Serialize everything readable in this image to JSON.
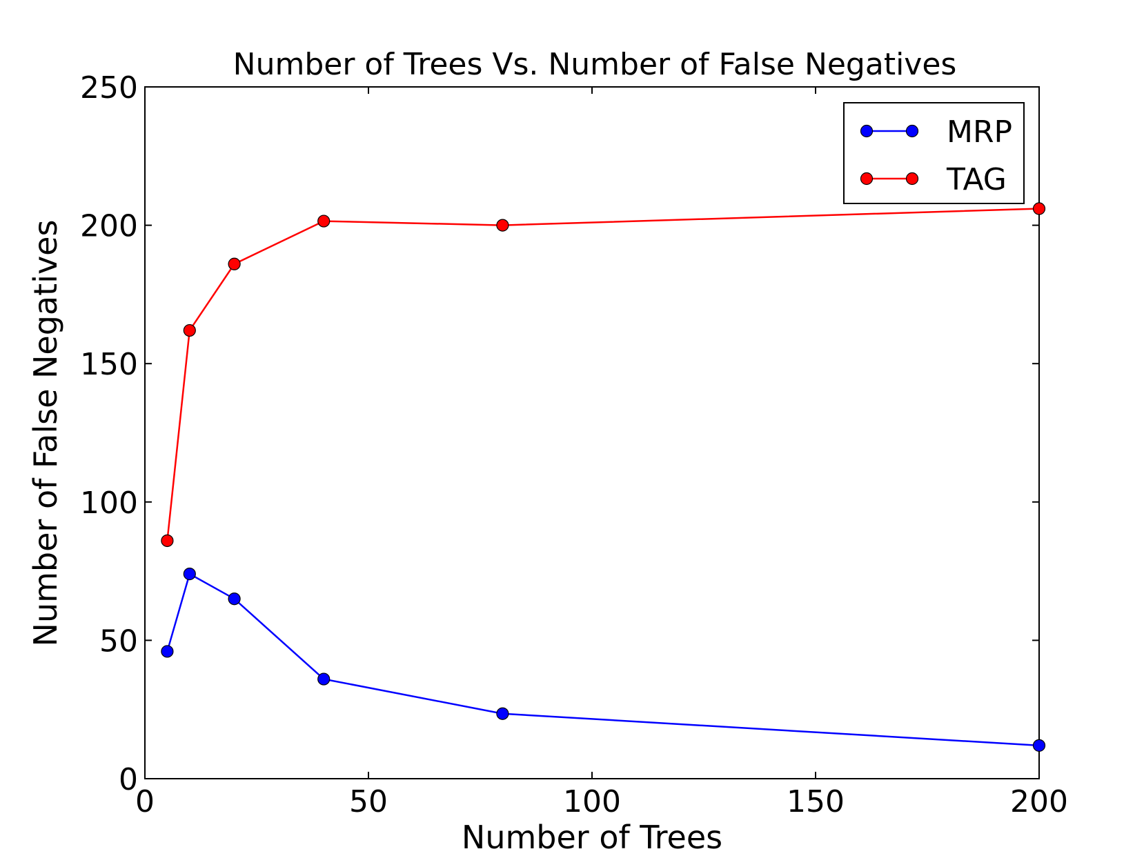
{
  "chart_data": {
    "type": "line",
    "title": "Number of Trees Vs. Number of False Negatives",
    "xlabel": "Number of Trees",
    "ylabel": "Number of False Negatives",
    "xlim": [
      0,
      200
    ],
    "ylim": [
      0,
      250
    ],
    "xticks": [
      0,
      50,
      100,
      150,
      200
    ],
    "yticks": [
      0,
      50,
      100,
      150,
      200,
      250
    ],
    "grid": false,
    "legend_position": "top-right",
    "series": [
      {
        "name": "MRP",
        "color": "#0000ff",
        "x": [
          5,
          10,
          20,
          40,
          80,
          200
        ],
        "y": [
          46,
          74,
          65,
          36,
          23.5,
          12
        ]
      },
      {
        "name": "TAG",
        "color": "#ff0000",
        "x": [
          5,
          10,
          20,
          40,
          80,
          200
        ],
        "y": [
          86,
          162,
          186,
          201.5,
          200,
          206
        ]
      }
    ]
  }
}
